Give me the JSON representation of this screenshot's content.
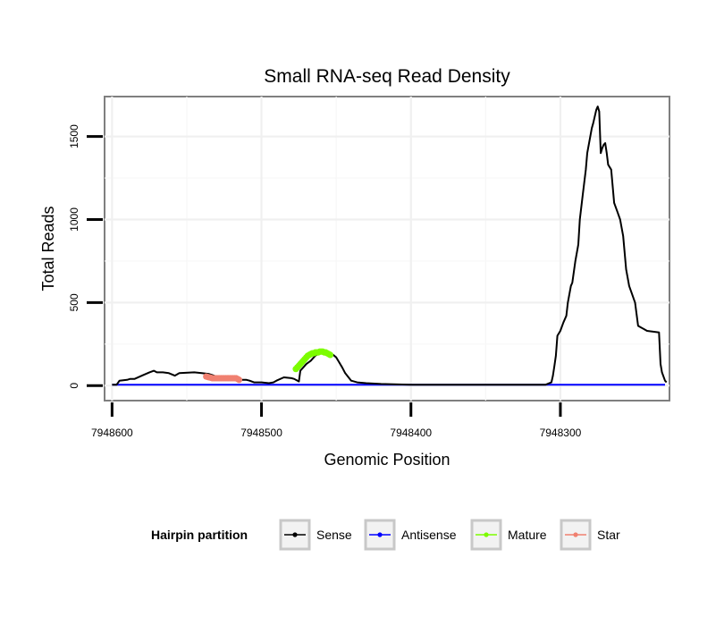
{
  "chart_data": {
    "type": "line",
    "title": "Small RNA-seq Read Density",
    "xlabel": "Genomic Position",
    "ylabel": "Total Reads",
    "x_reversed": true,
    "xlim": [
      7948605,
      7948227
    ],
    "ylim": [
      -90,
      1740
    ],
    "x_ticks": [
      {
        "value": 7948600,
        "label": "7948600"
      },
      {
        "value": 7948500,
        "label": "7948500"
      },
      {
        "value": 7948400,
        "label": "7948400"
      },
      {
        "value": 7948300,
        "label": "7948300"
      }
    ],
    "y_ticks": [
      {
        "value": 0,
        "label": "0"
      },
      {
        "value": 500,
        "label": "500"
      },
      {
        "value": 1000,
        "label": "1000"
      },
      {
        "value": 1500,
        "label": "1500"
      }
    ],
    "grid": true,
    "legend": {
      "title": "Hairpin partition",
      "position": "bottom",
      "entries": [
        {
          "label": "Sense",
          "color": "#000000"
        },
        {
          "label": "Antisense",
          "color": "#0000ff"
        },
        {
          "label": "Mature",
          "color": "#7cfc00"
        },
        {
          "label": "Star",
          "color": "#f08070"
        }
      ]
    },
    "series": [
      {
        "name": "Sense",
        "color": "#000000",
        "style": "line",
        "x": [
          7948600,
          7948597,
          7948595,
          7948590,
          7948588,
          7948585,
          7948580,
          7948575,
          7948572,
          7948570,
          7948566,
          7948562,
          7948558,
          7948555,
          7948545,
          7948540,
          7948535,
          7948530,
          7948525,
          7948520,
          7948515,
          7948510,
          7948508,
          7948505,
          7948500,
          7948495,
          7948492,
          7948490,
          7948485,
          7948480,
          7948478,
          7948477,
          7948475,
          7948474,
          7948472,
          7948470,
          7948467,
          7948464,
          7948462,
          7948460,
          7948458,
          7948456,
          7948454,
          7948452,
          7948450,
          7948448,
          7948446,
          7948444,
          7948440,
          7948436,
          7948430,
          7948420,
          7948400,
          7948380,
          7948360,
          7948340,
          7948320,
          7948310,
          7948306,
          7948305,
          7948304,
          7948303,
          7948302,
          7948300,
          7948298,
          7948296,
          7948295,
          7948293,
          7948292,
          7948290,
          7948288,
          7948287,
          7948285,
          7948283,
          7948282,
          7948280,
          7948279,
          7948278,
          7948277,
          7948276,
          7948275,
          7948274,
          7948273,
          7948272,
          7948271,
          7948270,
          7948269,
          7948268,
          7948266,
          7948264,
          7948262,
          7948260,
          7948258,
          7948256,
          7948254,
          7948252,
          7948250,
          7948248,
          7948246,
          7948244,
          7948242,
          7948238,
          7948234,
          7948233,
          7948232,
          7948230,
          7948229
        ],
        "y": [
          5,
          5,
          30,
          35,
          40,
          40,
          60,
          80,
          90,
          80,
          80,
          75,
          60,
          75,
          80,
          75,
          70,
          55,
          50,
          40,
          35,
          35,
          30,
          20,
          20,
          15,
          20,
          30,
          50,
          45,
          40,
          35,
          25,
          90,
          110,
          130,
          150,
          180,
          190,
          195,
          200,
          200,
          190,
          185,
          170,
          140,
          110,
          75,
          30,
          20,
          15,
          10,
          5,
          5,
          5,
          5,
          5,
          5,
          20,
          60,
          120,
          180,
          300,
          330,
          380,
          420,
          500,
          600,
          620,
          750,
          850,
          1000,
          1150,
          1300,
          1400,
          1500,
          1550,
          1580,
          1620,
          1660,
          1680,
          1650,
          1400,
          1430,
          1450,
          1460,
          1400,
          1330,
          1300,
          1100,
          1050,
          1000,
          900,
          700,
          600,
          550,
          500,
          360,
          350,
          340,
          330,
          325,
          320,
          130,
          80,
          30,
          20
        ],
        "points": false
      },
      {
        "name": "Antisense",
        "color": "#0000ff",
        "style": "line",
        "x": [
          7948600,
          7948550,
          7948500,
          7948450,
          7948400,
          7948350,
          7948310,
          7948300,
          7948280,
          7948260,
          7948240,
          7948230
        ],
        "y": [
          5,
          5,
          5,
          5,
          5,
          5,
          5,
          5,
          5,
          5,
          5,
          5
        ],
        "points": false
      },
      {
        "name": "Mature",
        "color": "#7cfc00",
        "style": "points",
        "x": [
          7948477,
          7948476,
          7948475,
          7948474,
          7948473,
          7948472,
          7948471,
          7948470,
          7948469,
          7948468,
          7948467,
          7948466,
          7948465,
          7948464,
          7948463,
          7948462,
          7948461,
          7948460,
          7948459,
          7948458,
          7948457,
          7948456,
          7948455,
          7948454
        ],
        "y": [
          100,
          110,
          120,
          130,
          140,
          150,
          160,
          170,
          180,
          185,
          190,
          195,
          195,
          200,
          200,
          200,
          205,
          205,
          205,
          200,
          200,
          195,
          190,
          185
        ],
        "points": true
      },
      {
        "name": "Star",
        "color": "#f08070",
        "style": "points",
        "x": [
          7948537,
          7948536,
          7948535,
          7948534,
          7948533,
          7948532,
          7948531,
          7948530,
          7948529,
          7948528,
          7948527,
          7948526,
          7948525,
          7948524,
          7948523,
          7948522,
          7948521,
          7948520,
          7948519,
          7948518,
          7948517,
          7948516,
          7948515
        ],
        "y": [
          55,
          52,
          50,
          48,
          45,
          45,
          45,
          45,
          45,
          45,
          45,
          45,
          45,
          45,
          45,
          45,
          45,
          45,
          45,
          45,
          45,
          40,
          35
        ],
        "points": true
      }
    ]
  }
}
